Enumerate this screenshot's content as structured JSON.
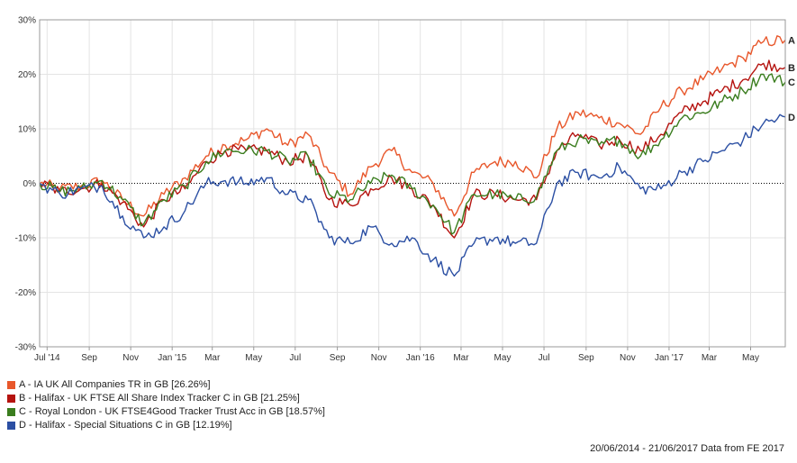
{
  "chart_data": {
    "type": "line",
    "ylim": [
      -30,
      30
    ],
    "y_ticks": [
      30,
      20,
      10,
      0,
      -10,
      -20,
      -30
    ],
    "y_tick_labels": [
      "30%",
      "20%",
      "10%",
      "0%",
      "-10%",
      "-20%",
      "-30%"
    ],
    "x_range": [
      "2014-06-20",
      "2017-06-21"
    ],
    "x_ticks": [
      {
        "date": "2014-07-01",
        "label": "Jul '14"
      },
      {
        "date": "2014-09-01",
        "label": "Sep"
      },
      {
        "date": "2014-11-01",
        "label": "Nov"
      },
      {
        "date": "2015-01-01",
        "label": "Jan '15"
      },
      {
        "date": "2015-03-01",
        "label": "Mar"
      },
      {
        "date": "2015-05-01",
        "label": "May"
      },
      {
        "date": "2015-07-01",
        "label": "Jul"
      },
      {
        "date": "2015-09-01",
        "label": "Sep"
      },
      {
        "date": "2015-11-01",
        "label": "Nov"
      },
      {
        "date": "2016-01-01",
        "label": "Jan '16"
      },
      {
        "date": "2016-03-01",
        "label": "Mar"
      },
      {
        "date": "2016-05-01",
        "label": "May"
      },
      {
        "date": "2016-07-01",
        "label": "Jul"
      },
      {
        "date": "2016-09-01",
        "label": "Sep"
      },
      {
        "date": "2016-11-01",
        "label": "Nov"
      },
      {
        "date": "2017-01-01",
        "label": "Jan '17"
      },
      {
        "date": "2017-03-01",
        "label": "Mar"
      },
      {
        "date": "2017-05-01",
        "label": "May"
      }
    ],
    "grid": true,
    "zero_line": "dotted",
    "x": [
      "2014-06-20",
      "2014-07-20",
      "2014-08-20",
      "2014-09-20",
      "2014-10-20",
      "2014-11-20",
      "2014-12-20",
      "2015-01-20",
      "2015-02-20",
      "2015-03-20",
      "2015-04-20",
      "2015-05-20",
      "2015-06-20",
      "2015-07-20",
      "2015-08-20",
      "2015-09-20",
      "2015-10-20",
      "2015-11-20",
      "2015-12-20",
      "2016-01-20",
      "2016-02-20",
      "2016-03-20",
      "2016-04-20",
      "2016-05-20",
      "2016-06-20",
      "2016-07-20",
      "2016-08-20",
      "2016-09-20",
      "2016-10-20",
      "2016-11-20",
      "2016-12-20",
      "2017-01-20",
      "2017-02-20",
      "2017-03-20",
      "2017-04-20",
      "2017-05-20",
      "2017-06-21"
    ],
    "series": [
      {
        "name": "A - IA UK All Companies TR in GB [26.26%]",
        "end_label": "A",
        "color": "#e8572b",
        "values": [
          0,
          -1,
          -0.5,
          0.5,
          -3,
          -6,
          -2,
          1,
          5,
          7,
          8,
          10,
          7,
          9,
          2,
          -2,
          3,
          6,
          2,
          0,
          -6,
          2,
          4,
          4,
          1,
          10,
          13,
          12,
          11,
          9,
          14,
          17,
          19,
          21,
          23,
          26,
          26.26
        ]
      },
      {
        "name": "B - Halifax - UK FTSE All Share Index Tracker C in GB [21.25%]",
        "end_label": "B",
        "color": "#b5130f",
        "values": [
          0,
          -1.5,
          -1,
          0,
          -3.5,
          -8,
          -3,
          -1,
          4,
          6,
          6,
          6,
          4,
          5,
          -3,
          -4,
          -1,
          1,
          -1,
          -4,
          -10,
          -2,
          -2,
          -3,
          -3,
          6,
          9,
          7,
          8,
          6,
          9,
          13,
          15,
          17,
          19,
          22,
          21.25
        ]
      },
      {
        "name": "C - Royal London - UK FTSE4Good Tracker Trust Acc in GB [18.57%]",
        "end_label": "C",
        "color": "#3a7d1e",
        "values": [
          0,
          -1.5,
          -1,
          0.5,
          -3,
          -7.5,
          -3,
          -0.5,
          4,
          6,
          6,
          6,
          4,
          5,
          -2,
          -3,
          0,
          1.5,
          -1,
          -4,
          -9,
          -2,
          -2,
          -3,
          -2.5,
          6,
          8,
          7,
          8,
          5,
          8,
          12,
          13,
          15,
          17,
          20,
          18.57
        ]
      },
      {
        "name": "D - Halifax - Special Situations C in GB [12.19%]",
        "end_label": "D",
        "color": "#2b4fa3",
        "values": [
          0,
          -2,
          -1,
          -0.5,
          -6,
          -10,
          -8,
          -5,
          0,
          0.5,
          0,
          1,
          -2,
          -3,
          -10,
          -11,
          -8,
          -11,
          -10,
          -14,
          -17,
          -11,
          -10,
          -11,
          -11,
          0,
          2,
          1,
          3,
          -1,
          -1,
          2,
          4,
          6,
          8,
          11,
          12.19
        ]
      }
    ]
  },
  "footer": "20/06/2014 - 21/06/2017 Data from FE 2017"
}
